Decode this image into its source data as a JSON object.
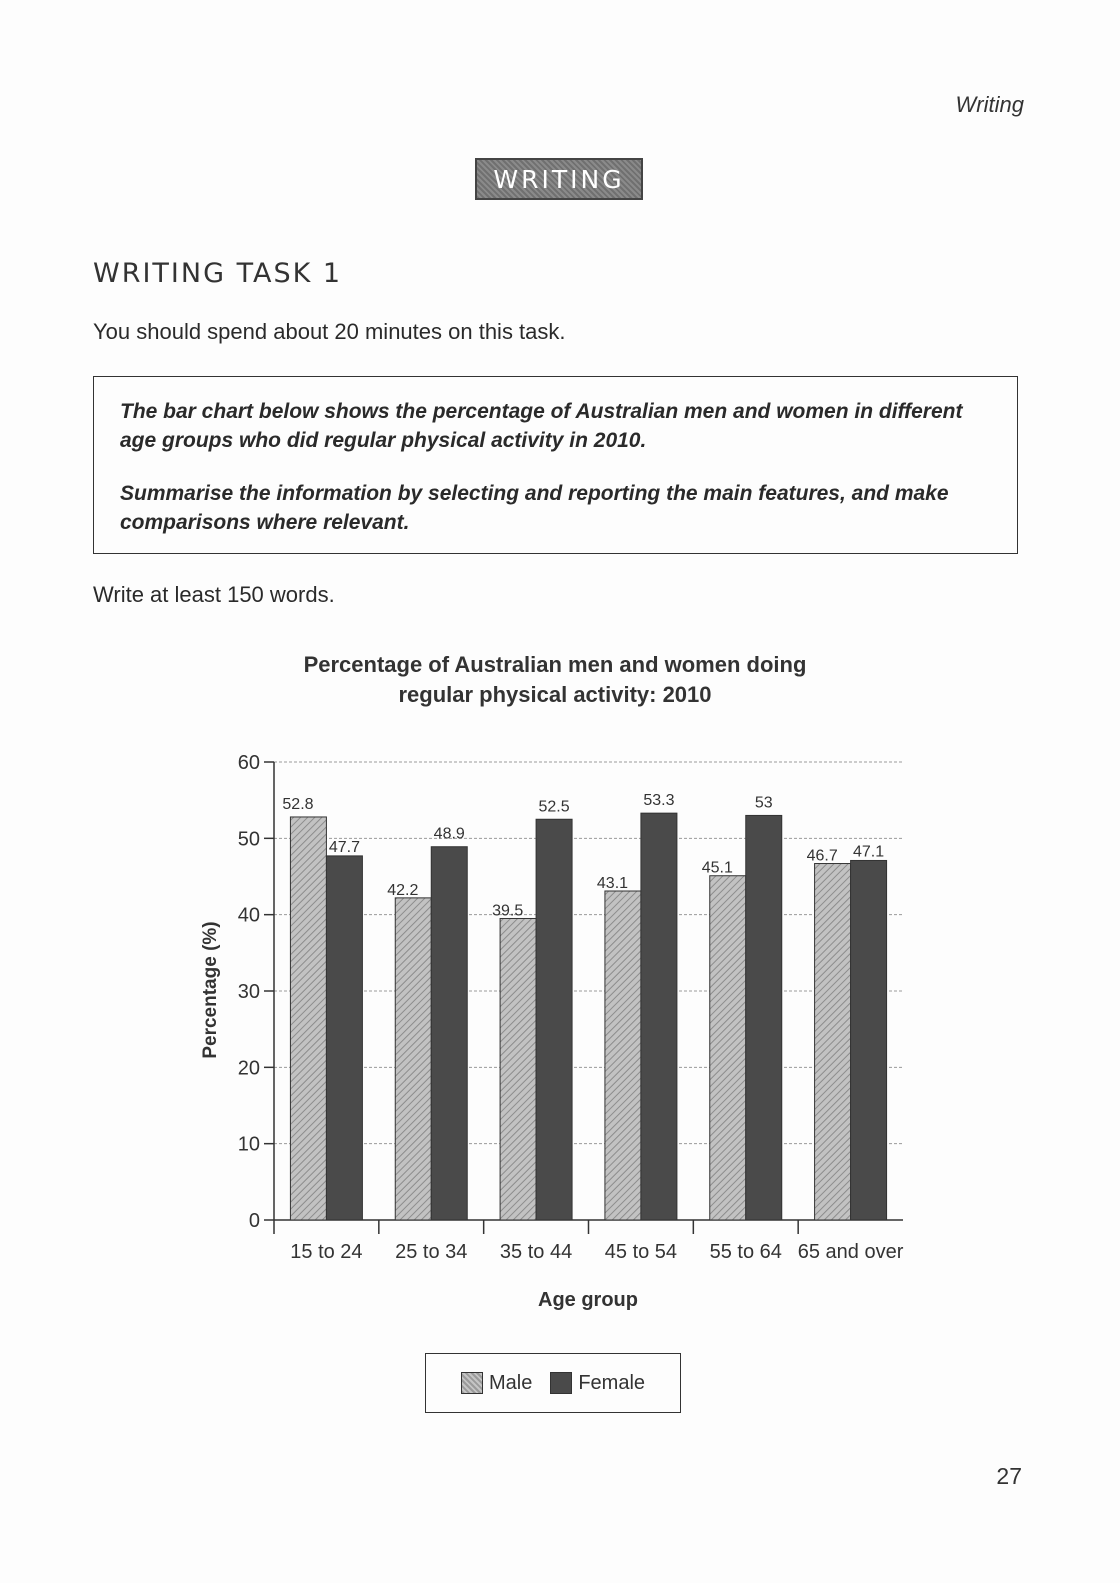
{
  "page": {
    "running_head": "Writing",
    "section_banner": "WRITING",
    "task_heading": "WRITING TASK 1",
    "time_instruction": "You should spend about 20 minutes on this task.",
    "prompt_line1": "The bar chart below shows the percentage of Australian men and women in different age groups who did regular physical activity in 2010.",
    "prompt_line2": "Summarise the information by selecting and reporting the main features, and make comparisons where relevant.",
    "word_instruction": "Write at least 150 words.",
    "page_number": "27"
  },
  "chart_data": {
    "type": "bar",
    "title_line1": "Percentage of Australian men and women doing",
    "title_line2": "regular physical activity: 2010",
    "xlabel": "Age group",
    "ylabel": "Percentage (%)",
    "ylim": [
      0,
      60
    ],
    "yticks": [
      0,
      10,
      20,
      30,
      40,
      50,
      60
    ],
    "categories": [
      "15 to 24",
      "25 to 34",
      "35 to 44",
      "45 to 54",
      "55 to 64",
      "65 and over"
    ],
    "series": [
      {
        "name": "Male",
        "values": [
          52.8,
          42.2,
          39.5,
          43.1,
          45.1,
          46.7
        ],
        "labels": [
          "52.8",
          "42.2",
          "39.5",
          "43.1",
          "45.1",
          "46.7"
        ],
        "color": "#b0b0b0"
      },
      {
        "name": "Female",
        "values": [
          47.7,
          48.9,
          52.5,
          53.3,
          53,
          47.1
        ],
        "labels": [
          "47.7",
          "48.9",
          "52.5",
          "53.3",
          "53",
          "47.1"
        ],
        "color": "#4a4a4a"
      }
    ],
    "grid": true,
    "legend_position": "bottom-center"
  }
}
